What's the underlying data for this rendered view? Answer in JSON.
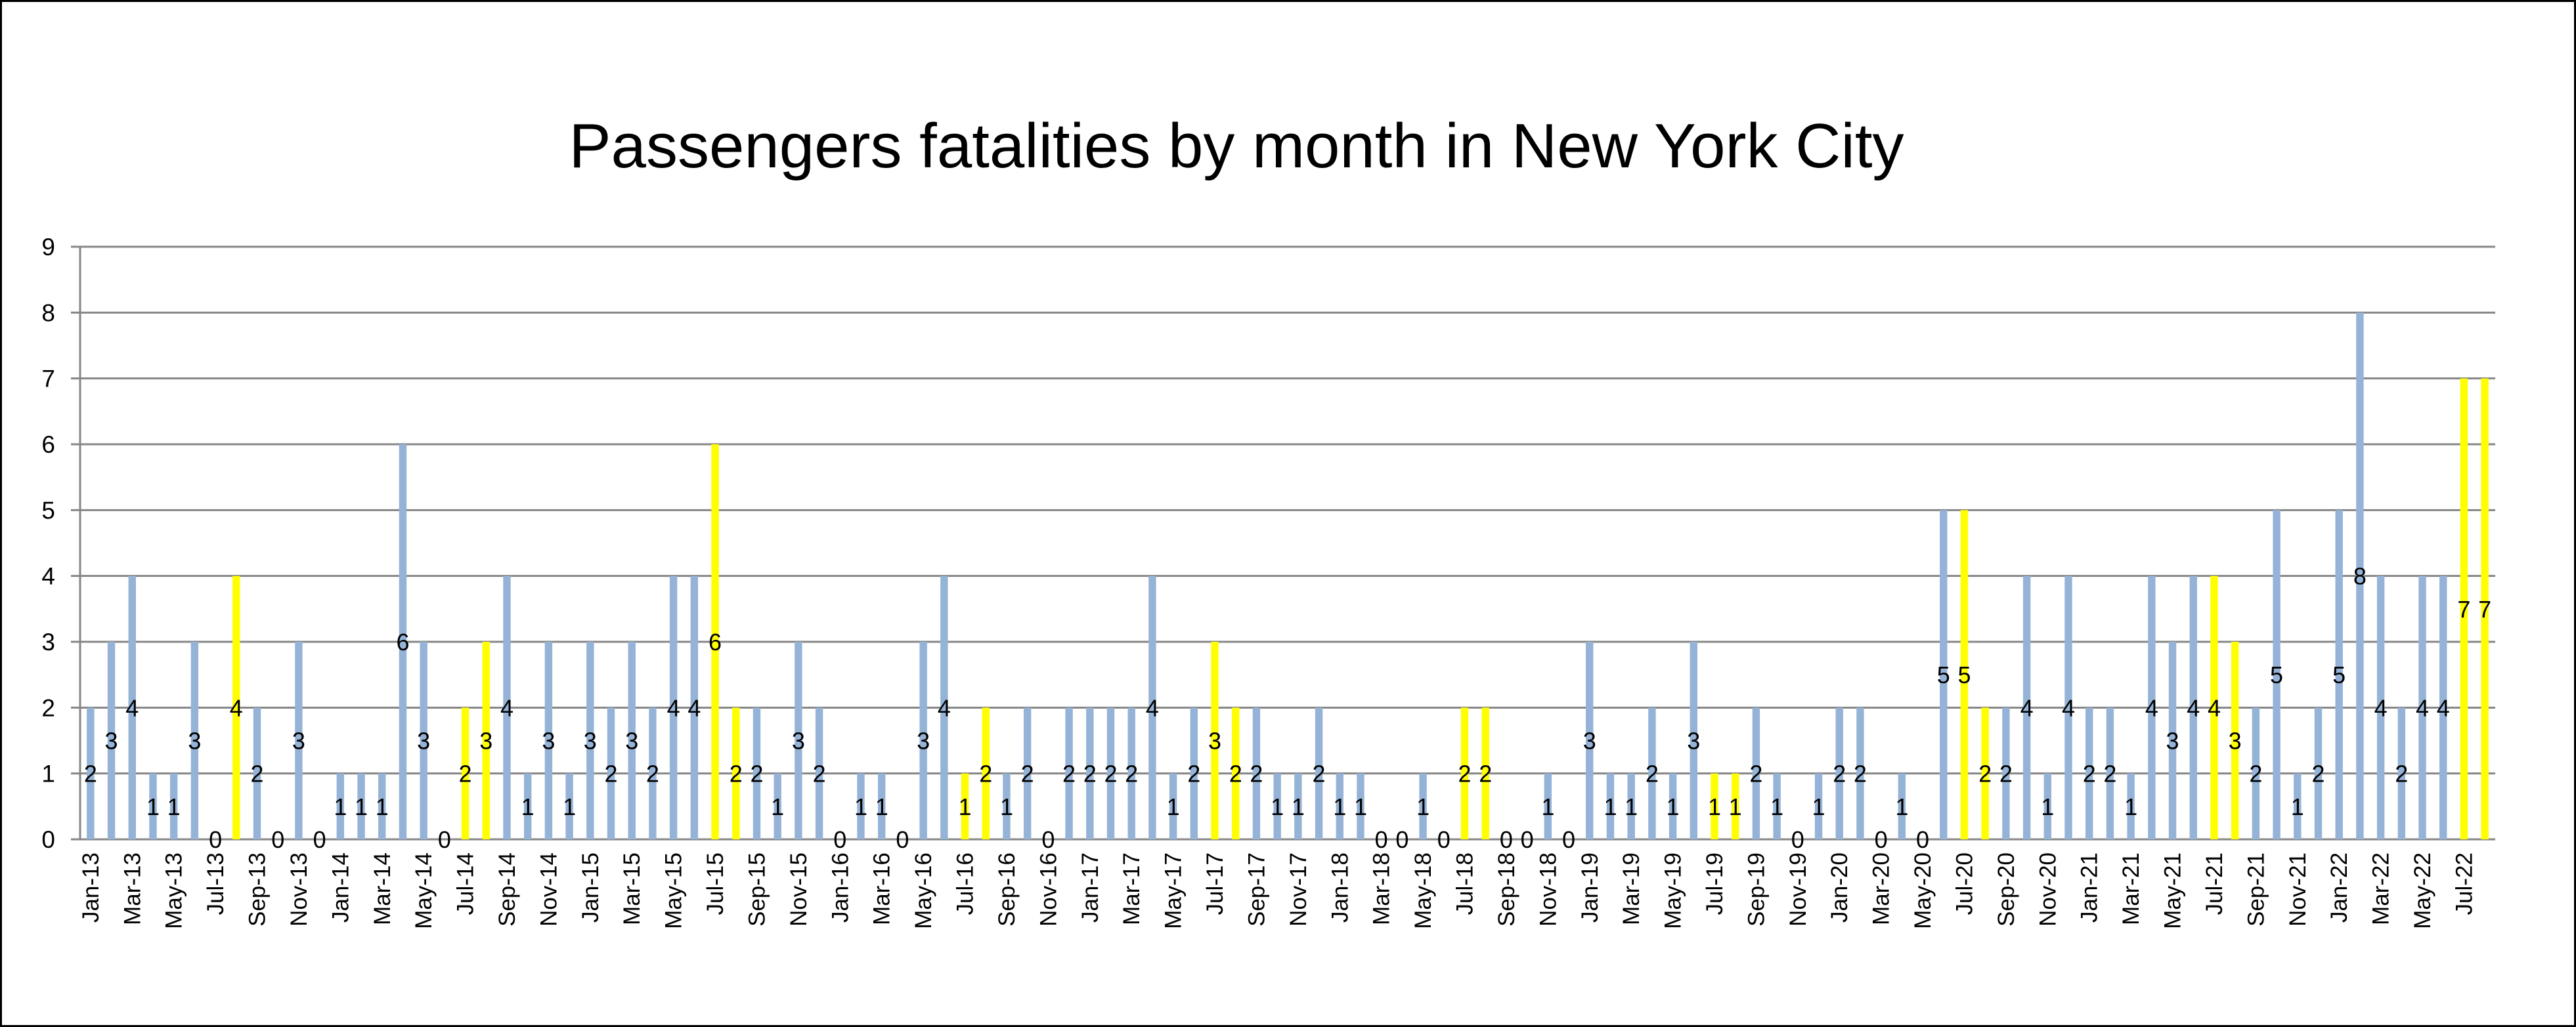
{
  "chart_data": {
    "type": "bar",
    "title": "Passengers fatalities by month in New York City",
    "xlabel": "",
    "ylabel": "",
    "ylim": [
      0,
      9
    ],
    "yticks": [
      0,
      1,
      2,
      3,
      4,
      5,
      6,
      7,
      8,
      9
    ],
    "grid": true,
    "legend": "none",
    "data_labels": true,
    "colors": {
      "default": "#95B3D7",
      "highlight": "#FFFF00",
      "grid": "#868686",
      "axis": "#868686"
    },
    "categories": [
      "Jan-13",
      "Feb-13",
      "Mar-13",
      "Apr-13",
      "May-13",
      "Jun-13",
      "Jul-13",
      "Aug-13",
      "Sep-13",
      "Oct-13",
      "Nov-13",
      "Dec-13",
      "Jan-14",
      "Feb-14",
      "Mar-14",
      "Apr-14",
      "May-14",
      "Jun-14",
      "Jul-14",
      "Aug-14",
      "Sep-14",
      "Oct-14",
      "Nov-14",
      "Dec-14",
      "Jan-15",
      "Feb-15",
      "Mar-15",
      "Apr-15",
      "May-15",
      "Jun-15",
      "Jul-15",
      "Aug-15",
      "Sep-15",
      "Oct-15",
      "Nov-15",
      "Dec-15",
      "Jan-16",
      "Feb-16",
      "Mar-16",
      "Apr-16",
      "May-16",
      "Jun-16",
      "Jul-16",
      "Aug-16",
      "Sep-16",
      "Oct-16",
      "Nov-16",
      "Dec-16",
      "Jan-17",
      "Feb-17",
      "Mar-17",
      "Apr-17",
      "May-17",
      "Jun-17",
      "Jul-17",
      "Aug-17",
      "Sep-17",
      "Oct-17",
      "Nov-17",
      "Dec-17",
      "Jan-18",
      "Feb-18",
      "Mar-18",
      "Apr-18",
      "May-18",
      "Jun-18",
      "Jul-18",
      "Aug-18",
      "Sep-18",
      "Oct-18",
      "Nov-18",
      "Dec-18",
      "Jan-19",
      "Feb-19",
      "Mar-19",
      "Apr-19",
      "May-19",
      "Jun-19",
      "Jul-19",
      "Aug-19",
      "Sep-19",
      "Oct-19",
      "Nov-19",
      "Dec-19",
      "Jan-20",
      "Feb-20",
      "Mar-20",
      "Apr-20",
      "May-20",
      "Jun-20",
      "Jul-20",
      "Aug-20",
      "Sep-20",
      "Oct-20",
      "Nov-20",
      "Dec-20",
      "Jan-21",
      "Feb-21",
      "Mar-21",
      "Apr-21",
      "May-21",
      "Jun-21",
      "Jul-21",
      "Aug-21",
      "Sep-21",
      "Oct-21",
      "Nov-21",
      "Dec-21",
      "Jan-22",
      "Feb-22",
      "Mar-22",
      "Apr-22",
      "May-22",
      "Jun-22",
      "Jul-22",
      "Aug-22"
    ],
    "values": [
      2,
      3,
      4,
      1,
      1,
      3,
      0,
      4,
      2,
      0,
      3,
      0,
      1,
      1,
      1,
      6,
      3,
      0,
      2,
      3,
      4,
      1,
      3,
      1,
      3,
      2,
      3,
      2,
      4,
      4,
      6,
      2,
      2,
      1,
      3,
      2,
      0,
      1,
      1,
      0,
      3,
      4,
      1,
      2,
      1,
      2,
      0,
      2,
      2,
      2,
      2,
      4,
      1,
      2,
      3,
      2,
      2,
      1,
      1,
      2,
      1,
      1,
      0,
      0,
      1,
      0,
      2,
      2,
      0,
      0,
      1,
      0,
      3,
      1,
      1,
      2,
      1,
      3,
      1,
      1,
      2,
      1,
      0,
      1,
      2,
      2,
      0,
      1,
      0,
      5,
      5,
      2,
      2,
      4,
      1,
      4,
      2,
      2,
      1,
      4,
      3,
      4,
      4,
      3,
      2,
      5,
      1,
      2,
      5,
      8,
      4,
      2,
      4,
      4,
      7,
      7
    ],
    "highlighted": [
      "Aug-13",
      "Jul-14",
      "Aug-14",
      "Jul-15",
      "Aug-15",
      "Jul-16",
      "Aug-16",
      "Jul-17",
      "Aug-17",
      "Jul-18",
      "Aug-18",
      "Jul-19",
      "Aug-19",
      "Jul-20",
      "Aug-20",
      "Jul-21",
      "Aug-21",
      "Jul-22",
      "Aug-22"
    ]
  }
}
